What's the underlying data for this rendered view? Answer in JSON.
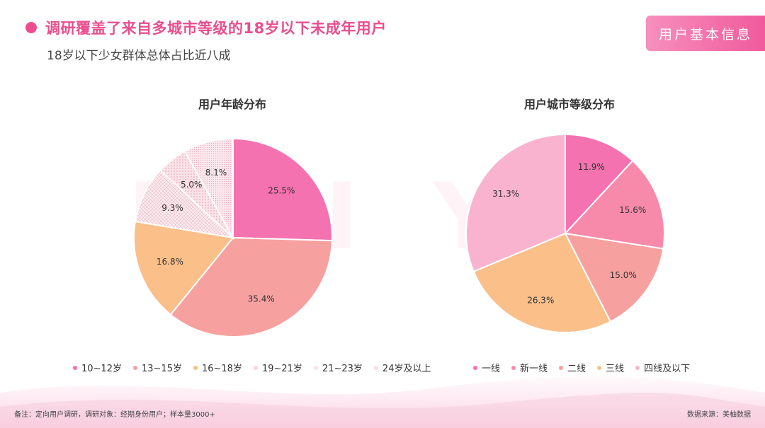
{
  "header": {
    "title": "调研覆盖了来自多城市等级的18岁以下未成年用户",
    "subtitle": "18岁以下少女群体总体占比近八成",
    "badge": "用户基本信息"
  },
  "colors": {
    "accent": "#ea4e8e",
    "badge_gradient": [
      "#f78fbd",
      "#f05a9c"
    ]
  },
  "chart_data": [
    {
      "type": "pie",
      "title": "用户年龄分布",
      "categories": [
        "10~12岁",
        "13~15岁",
        "16~18岁",
        "19~21岁",
        "21~23岁",
        "24岁及以上"
      ],
      "values": [
        25.5,
        35.4,
        16.8,
        9.3,
        5.0,
        8.1
      ],
      "labels": [
        "25.5%",
        "35.4%",
        "16.8%",
        "9.3%",
        "5.0%",
        "8.1%"
      ],
      "colors": [
        "#f472b0",
        "#f7a0a0",
        "#fbbf8a",
        "#f8d4dc",
        "#f9e4e4",
        "#f6dde6"
      ],
      "patterns": [
        false,
        false,
        false,
        true,
        true,
        true
      ],
      "legend_position": "bottom"
    },
    {
      "type": "pie",
      "title": "用户城市等级分布",
      "categories": [
        "一线",
        "新一线",
        "二线",
        "三线",
        "四线及以下"
      ],
      "values": [
        11.9,
        15.6,
        15.0,
        26.3,
        31.3
      ],
      "labels": [
        "11.9%",
        "15.6%",
        "15.0%",
        "26.3%",
        "31.3%"
      ],
      "colors": [
        "#f472b0",
        "#f78aaa",
        "#f7a0a0",
        "#fbbf8a",
        "#f9b3cf"
      ],
      "legend_position": "bottom"
    }
  ],
  "watermark_text": "MEI YU",
  "footer": {
    "note": "备注：定向用户调研，调研对象：经期身份用户；样本量3000+",
    "source": "数据来源：美柚数据"
  }
}
